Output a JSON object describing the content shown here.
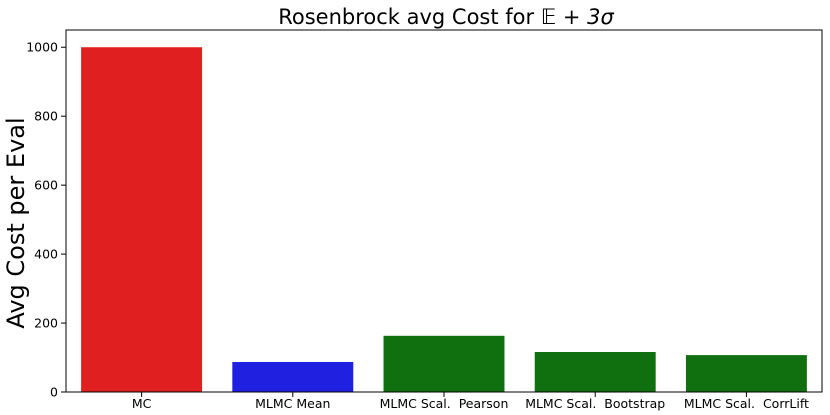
{
  "chart_data": {
    "type": "bar",
    "title_prefix": "Rosenbrock avg Cost for ",
    "title_math": "𝔼 + 3σ",
    "xlabel": "",
    "ylabel": "Avg Cost per Eval",
    "categories": [
      "MC",
      "MLMC Mean",
      "MLMC Scal.  Pearson",
      "MLMC Scal.  Bootstrap",
      "MLMC Scal.  CorrLift"
    ],
    "values": [
      1000,
      87,
      163,
      116,
      107
    ],
    "colors": [
      "#e02020",
      "#2020e0",
      "#107010",
      "#107010",
      "#107010"
    ],
    "ylim": [
      0,
      1050
    ],
    "yticks": [
      0,
      200,
      400,
      600,
      800,
      1000
    ],
    "grid": false
  }
}
